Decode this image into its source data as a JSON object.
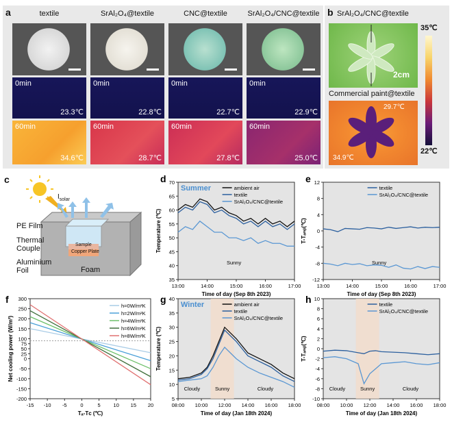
{
  "panel_a": {
    "label": "a",
    "columns": [
      {
        "name": "textile",
        "time0": "0min",
        "temp0": "23.3℃",
        "time60": "60min",
        "temp60": "34.6℃"
      },
      {
        "name": "SrAl₂O₄@textile",
        "time0": "0min",
        "temp0": "22.8℃",
        "time60": "60min",
        "temp60": "28.7℃"
      },
      {
        "name": "CNC@textile",
        "time0": "0min",
        "temp0": "22.7℃",
        "time60": "60min",
        "temp60": "27.8℃"
      },
      {
        "name": "SrAl₂O₄/CNC@textile",
        "time0": "0min",
        "temp0": "22.9℃",
        "time60": "60min",
        "temp60": "25.0℃"
      }
    ]
  },
  "panel_b": {
    "label": "b",
    "top_label": "SrAl₂O₄/CNC@textile",
    "bottom_label": "Commercial paint@textile",
    "scale": "2cm",
    "temp_hot": "29.7℃",
    "temp_cold": "34.9℃",
    "colorbar_max": "35℃",
    "colorbar_min": "22℃"
  },
  "panel_c": {
    "label": "c",
    "solar": "I",
    "solar_sub": "solar",
    "pe_film": "PE Film",
    "thermal": "Thermal",
    "couple": "Couple",
    "aluminium": "Aluminium",
    "foil": "Foil",
    "sample": "Sample",
    "copper": "Copper Plate",
    "foam": "Foam"
  },
  "colors": {
    "ambient": "#111111",
    "textile": "#2b5f9e",
    "composite": "#5a97d3",
    "summer_label": "#4a8fd0",
    "winter_label": "#4a8fd0",
    "plot_bg": "#e4e4e4",
    "sunny_band": "#f3dccb"
  },
  "chart_data": [
    {
      "id": "d",
      "type": "line",
      "label": "d",
      "season": "Summer",
      "xlabel": "Time of day (Sep 8th 2023)",
      "ylabel": "Temperature (℃)",
      "xlim": [
        13,
        17
      ],
      "ylim": [
        35,
        70
      ],
      "xticks": [
        "13:00",
        "14:00",
        "15:00",
        "16:00",
        "17:00"
      ],
      "yticks": [
        "35",
        "40",
        "45",
        "50",
        "55",
        "60",
        "65",
        "70"
      ],
      "annotation": "Sunny",
      "x": [
        13.0,
        13.25,
        13.5,
        13.75,
        14.0,
        14.25,
        14.5,
        14.75,
        15.0,
        15.25,
        15.5,
        15.75,
        16.0,
        16.25,
        16.5,
        16.75,
        17.0
      ],
      "series": [
        {
          "name": "ambient air",
          "values": [
            60,
            62,
            61,
            64,
            63,
            60,
            61,
            59,
            58,
            56,
            57,
            55,
            57,
            55,
            56,
            54,
            56
          ]
        },
        {
          "name": "textile",
          "values": [
            59,
            61,
            60,
            63,
            62,
            59,
            60,
            58,
            57,
            55,
            56,
            54,
            56,
            54,
            55,
            53,
            55
          ]
        },
        {
          "name": "SrAl₂O₄/CNC@textile",
          "values": [
            52,
            54,
            53,
            56,
            54,
            52,
            52,
            50,
            50,
            49,
            50,
            48,
            49,
            48,
            48,
            47,
            47
          ]
        }
      ]
    },
    {
      "id": "e",
      "type": "line",
      "label": "e",
      "xlabel": "Time of day (Sep 8th 2023)",
      "ylabel": "T-Tₐₘᵦ(℃)",
      "xlim": [
        13,
        17
      ],
      "ylim": [
        -12,
        12
      ],
      "xticks": [
        "13:00",
        "14:00",
        "15:00",
        "16:00",
        "17:00"
      ],
      "yticks": [
        "-12",
        "-8",
        "-4",
        "0",
        "4",
        "8",
        "12"
      ],
      "annotation": "Sunny",
      "x": [
        13.0,
        13.25,
        13.5,
        13.75,
        14.0,
        14.25,
        14.5,
        14.75,
        15.0,
        15.25,
        15.5,
        15.75,
        16.0,
        16.25,
        16.5,
        16.75,
        17.0
      ],
      "series": [
        {
          "name": "textile",
          "values": [
            0.5,
            0.3,
            -0.2,
            0.6,
            0.5,
            0.4,
            0.8,
            0.7,
            0.5,
            0.9,
            0.6,
            0.8,
            1.0,
            0.7,
            0.9,
            0.8,
            0.9
          ]
        },
        {
          "name": "SrAl₂O₄/CNC@textile",
          "values": [
            -8,
            -8.2,
            -8.6,
            -8.0,
            -8.3,
            -8.1,
            -8.6,
            -8.4,
            -8.5,
            -9.0,
            -8.4,
            -9.2,
            -9.4,
            -8.8,
            -9.3,
            -8.8,
            -9.0
          ]
        }
      ]
    },
    {
      "id": "f",
      "type": "line",
      "label": "f",
      "xlabel": "Tₐ-Tᴄ (℃)",
      "ylabel": "Net cooling power (W/m²)",
      "xlim": [
        -15,
        20
      ],
      "ylim": [
        -200,
        300
      ],
      "xticks": [
        "-15",
        "-10",
        "-5",
        "0",
        "5",
        "10",
        "15",
        "20"
      ],
      "yticks": [
        "-200",
        "-150",
        "-100",
        "-50",
        "0",
        "25",
        "50",
        "75",
        "100",
        "150",
        "200",
        "250",
        "300"
      ],
      "x": [
        -15,
        20
      ],
      "series": [
        {
          "name": "h=0W/m²K",
          "values": [
            150,
            30
          ]
        },
        {
          "name": "h=2W/m²K",
          "values": [
            180,
            -10
          ]
        },
        {
          "name": "h=4W/m²K",
          "values": [
            210,
            -50
          ]
        },
        {
          "name": "h=6W/m²K",
          "values": [
            240,
            -90
          ]
        },
        {
          "name": "h=8W/m²K",
          "values": [
            270,
            -130
          ]
        }
      ]
    },
    {
      "id": "g",
      "type": "line",
      "label": "g",
      "season": "Winter",
      "xlabel": "Time of day (Jan 18th 2024)",
      "ylabel": "Temperature (℃)",
      "xlim": [
        8,
        18
      ],
      "ylim": [
        5,
        40
      ],
      "xticks": [
        "08:00",
        "10:00",
        "12:00",
        "14:00",
        "16:00",
        "18:00"
      ],
      "yticks": [
        "5",
        "10",
        "15",
        "20",
        "25",
        "30",
        "35",
        "40"
      ],
      "annotations": [
        "Cloudy",
        "Sunny",
        "Cloudy"
      ],
      "x": [
        8,
        9,
        10,
        10.5,
        11,
        11.5,
        12,
        12.5,
        13,
        14,
        15,
        16,
        17,
        18
      ],
      "series": [
        {
          "name": "ambient air",
          "values": [
            12,
            12.5,
            14,
            16,
            20,
            25,
            30,
            28,
            26,
            21,
            19,
            17,
            14,
            12
          ]
        },
        {
          "name": "textile",
          "values": [
            11.5,
            12,
            13.5,
            15.5,
            19,
            24,
            29,
            27,
            25,
            20,
            18,
            16,
            13,
            11
          ]
        },
        {
          "name": "SrAl₂O₄/CNC@textile",
          "values": [
            11,
            11.5,
            12,
            13,
            16,
            20,
            23,
            21,
            19,
            16,
            14,
            12.5,
            11,
            9
          ]
        }
      ]
    },
    {
      "id": "h",
      "type": "line",
      "label": "h",
      "xlabel": "Time of day (Jan 18th 2024)",
      "ylabel": "T-Tₐₘᵦ(℃)",
      "xlim": [
        8,
        18
      ],
      "ylim": [
        -10,
        10
      ],
      "xticks": [
        "08:00",
        "10:00",
        "12:00",
        "14:00",
        "16:00",
        "18:00"
      ],
      "yticks": [
        "-10",
        "-8",
        "-6",
        "-4",
        "-2",
        "0",
        "2",
        "4",
        "6",
        "8",
        "10"
      ],
      "annotations": [
        "Cloudy",
        "Sunny",
        "Cloudy"
      ],
      "x": [
        8,
        9,
        10,
        10.5,
        11,
        11.5,
        12,
        12.5,
        13,
        14,
        15,
        16,
        17,
        18
      ],
      "series": [
        {
          "name": "textile",
          "values": [
            -0.5,
            -0.3,
            -0.4,
            -0.6,
            -0.8,
            -1.0,
            -0.5,
            -0.4,
            -0.6,
            -0.7,
            -0.8,
            -1.0,
            -1.2,
            -1.0
          ]
        },
        {
          "name": "SrAl₂O₄/CNC@textile",
          "values": [
            -1.8,
            -1.6,
            -2.0,
            -2.5,
            -3.0,
            -7.0,
            -5.0,
            -4.0,
            -3.0,
            -2.8,
            -2.6,
            -3.0,
            -3.2,
            -2.8
          ]
        }
      ]
    }
  ]
}
